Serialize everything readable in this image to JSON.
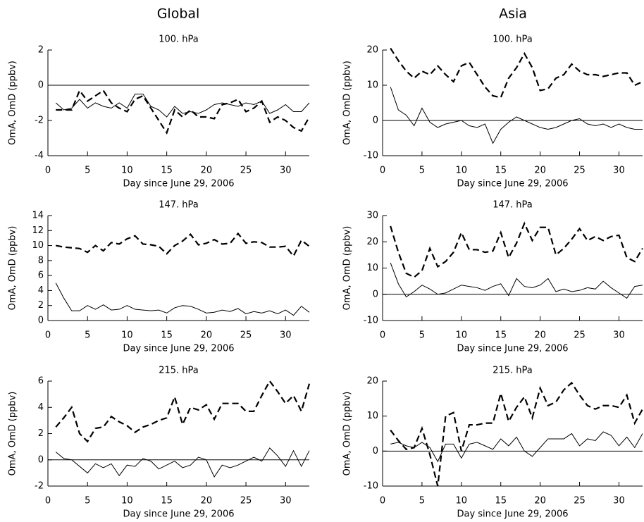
{
  "column_titles": [
    "Global",
    "Asia"
  ],
  "chart_data": [
    {
      "type": "line",
      "title": "100. hPa",
      "xlabel": "Day since June 29, 2006",
      "ylabel": "OmA, OmD (ppbv)",
      "x": [
        1,
        2,
        3,
        4,
        5,
        6,
        7,
        8,
        9,
        10,
        11,
        12,
        13,
        14,
        15,
        16,
        17,
        18,
        19,
        20,
        21,
        22,
        23,
        24,
        25,
        26,
        27,
        28,
        29,
        30,
        31,
        32,
        33
      ],
      "xlim": [
        0,
        33
      ],
      "xticks": [
        0,
        5,
        10,
        15,
        20,
        25,
        30
      ],
      "ylim": [
        -4,
        2
      ],
      "yticks": [
        -4,
        -2,
        0,
        2
      ],
      "hline": 0,
      "series": [
        {
          "color": "#000000",
          "dash": false,
          "values": [
            -1.0,
            -1.4,
            -1.3,
            -0.8,
            -1.3,
            -1.0,
            -1.2,
            -1.3,
            -1.0,
            -1.3,
            -0.5,
            -0.5,
            -1.2,
            -1.4,
            -1.8,
            -1.2,
            -1.6,
            -1.5,
            -1.6,
            -1.4,
            -1.1,
            -1.0,
            -1.1,
            -1.2,
            -1.0,
            -1.1,
            -0.9,
            -1.6,
            -1.4,
            -1.1,
            -1.5,
            -1.5,
            -1.0
          ]
        },
        {
          "color": "#000000",
          "dash": true,
          "values": [
            -1.4,
            -1.4,
            -1.4,
            -0.3,
            -0.9,
            -0.6,
            -0.3,
            -1.0,
            -1.3,
            -1.5,
            -0.8,
            -0.6,
            -1.3,
            -2.0,
            -2.7,
            -1.4,
            -1.8,
            -1.4,
            -1.8,
            -1.8,
            -1.9,
            -1.1,
            -1.0,
            -0.8,
            -1.5,
            -1.3,
            -0.9,
            -2.1,
            -1.8,
            -2.0,
            -2.4,
            -2.6,
            -1.8
          ]
        }
      ]
    },
    {
      "type": "line",
      "title": "100. hPa",
      "xlabel": "Day since June 29, 2006",
      "ylabel": "OmA, OmD (ppbv)",
      "x": [
        1,
        2,
        3,
        4,
        5,
        6,
        7,
        8,
        9,
        10,
        11,
        12,
        13,
        14,
        15,
        16,
        17,
        18,
        19,
        20,
        21,
        22,
        23,
        24,
        25,
        26,
        27,
        28,
        29,
        30,
        31,
        32,
        33
      ],
      "xlim": [
        0,
        33
      ],
      "xticks": [
        0,
        5,
        10,
        15,
        20,
        25,
        30
      ],
      "ylim": [
        -10,
        20
      ],
      "yticks": [
        -10,
        0,
        10,
        20
      ],
      "hline": 0,
      "series": [
        {
          "color": "#000000",
          "dash": false,
          "values": [
            9.5,
            3,
            1.5,
            -1.5,
            3.5,
            -0.5,
            -2,
            -1,
            -0.5,
            0,
            -1.5,
            -2,
            -1,
            -6.5,
            -2.5,
            -0.5,
            1,
            0,
            -1,
            -2,
            -2.5,
            -2,
            -1,
            0,
            0.5,
            -1,
            -1.5,
            -1,
            -2,
            -1,
            -2,
            -2.5,
            -2.5
          ]
        },
        {
          "color": "#000000",
          "dash": true,
          "values": [
            20.5,
            17,
            14,
            12,
            14,
            13,
            15.5,
            13,
            11,
            15.5,
            16.5,
            13,
            9.5,
            7,
            6.5,
            12,
            15,
            19,
            15,
            8.5,
            9,
            12,
            13,
            16,
            14,
            13,
            13,
            12.5,
            13,
            13.5,
            13.5,
            10,
            11
          ]
        }
      ]
    },
    {
      "type": "line",
      "title": "147. hPa",
      "xlabel": "Day since June 29, 2006",
      "ylabel": "OmA, OmD (ppbv)",
      "x": [
        1,
        2,
        3,
        4,
        5,
        6,
        7,
        8,
        9,
        10,
        11,
        12,
        13,
        14,
        15,
        16,
        17,
        18,
        19,
        20,
        21,
        22,
        23,
        24,
        25,
        26,
        27,
        28,
        29,
        30,
        31,
        32,
        33
      ],
      "xlim": [
        0,
        33
      ],
      "xticks": [
        0,
        5,
        10,
        15,
        20,
        25,
        30
      ],
      "ylim": [
        0,
        14
      ],
      "yticks": [
        0,
        2,
        4,
        6,
        8,
        10,
        12,
        14
      ],
      "hline": 0,
      "series": [
        {
          "color": "#000000",
          "dash": false,
          "values": [
            5,
            3,
            1.3,
            1.3,
            2,
            1.5,
            2.1,
            1.4,
            1.5,
            2,
            1.5,
            1.4,
            1.3,
            1.4,
            1,
            1.7,
            2,
            1.9,
            1.5,
            1,
            1.1,
            1.4,
            1.2,
            1.6,
            0.9,
            1.2,
            1,
            1.3,
            0.9,
            1.4,
            0.7,
            1.9,
            1.1
          ]
        },
        {
          "color": "#000000",
          "dash": true,
          "values": [
            10,
            9.8,
            9.7,
            9.6,
            9.1,
            10,
            9.3,
            10.4,
            10.2,
            10.9,
            11.3,
            10.2,
            10.1,
            9.9,
            8.9,
            10,
            10.6,
            11.5,
            10.1,
            10.3,
            10.8,
            10.2,
            10.3,
            11.6,
            10.3,
            10.5,
            10.4,
            9.8,
            9.8,
            9.9,
            8.6,
            10.7,
            9.9
          ]
        }
      ]
    },
    {
      "type": "line",
      "title": "147. hPa",
      "xlabel": "Day since June 29, 2006",
      "ylabel": "OmA, OmD (ppbv)",
      "x": [
        1,
        2,
        3,
        4,
        5,
        6,
        7,
        8,
        9,
        10,
        11,
        12,
        13,
        14,
        15,
        16,
        17,
        18,
        19,
        20,
        21,
        22,
        23,
        24,
        25,
        26,
        27,
        28,
        29,
        30,
        31,
        32,
        33
      ],
      "xlim": [
        0,
        33
      ],
      "xticks": [
        0,
        5,
        10,
        15,
        20,
        25,
        30
      ],
      "ylim": [
        -10,
        30
      ],
      "yticks": [
        -10,
        0,
        10,
        20,
        30
      ],
      "hline": 0,
      "series": [
        {
          "color": "#000000",
          "dash": false,
          "values": [
            12,
            4,
            -1,
            1,
            3.5,
            2,
            0,
            0.5,
            2,
            3.5,
            3,
            2.5,
            1.5,
            3,
            4,
            -0.5,
            6,
            3,
            2.5,
            3.5,
            6,
            1,
            2,
            1,
            1.5,
            2.5,
            2,
            5,
            2.5,
            0.5,
            -1.5,
            3,
            3.5
          ]
        },
        {
          "color": "#000000",
          "dash": true,
          "values": [
            26,
            16,
            8,
            6.5,
            9,
            17.5,
            10.5,
            12.5,
            16,
            23.5,
            17,
            17,
            16,
            16.5,
            23.5,
            14,
            19.5,
            27,
            20.5,
            25.5,
            25.5,
            15,
            17.5,
            21,
            25,
            20.5,
            22,
            20.5,
            22,
            22.5,
            14,
            12.5,
            17.5
          ]
        }
      ]
    },
    {
      "type": "line",
      "title": "215. hPa",
      "xlabel": "Day since June 29, 2006",
      "ylabel": "OmA, OmD (ppbv)",
      "x": [
        1,
        2,
        3,
        4,
        5,
        6,
        7,
        8,
        9,
        10,
        11,
        12,
        13,
        14,
        15,
        16,
        17,
        18,
        19,
        20,
        21,
        22,
        23,
        24,
        25,
        26,
        27,
        28,
        29,
        30,
        31,
        32,
        33
      ],
      "xlim": [
        0,
        33
      ],
      "xticks": [
        0,
        5,
        10,
        15,
        20,
        25,
        30
      ],
      "ylim": [
        -2,
        6
      ],
      "yticks": [
        -2,
        0,
        2,
        4,
        6
      ],
      "hline": 0,
      "series": [
        {
          "color": "#000000",
          "dash": false,
          "values": [
            0.6,
            0.1,
            0,
            -0.5,
            -1,
            -0.3,
            -0.6,
            -0.3,
            -1.2,
            -0.4,
            -0.5,
            0.1,
            -0.1,
            -0.7,
            -0.4,
            -0.1,
            -0.6,
            -0.4,
            0.2,
            0,
            -1.3,
            -0.4,
            -0.6,
            -0.4,
            -0.1,
            0.2,
            -0.1,
            0.9,
            0.3,
            -0.5,
            0.7,
            -0.5,
            0.7
          ]
        },
        {
          "color": "#000000",
          "dash": true,
          "values": [
            2.5,
            3.2,
            4,
            2,
            1.4,
            2.4,
            2.5,
            3.3,
            2.9,
            2.6,
            2.1,
            2.5,
            2.7,
            3,
            3.2,
            4.8,
            2.7,
            4,
            3.8,
            4.2,
            3.1,
            4.3,
            4.3,
            4.3,
            3.7,
            3.7,
            4.9,
            6,
            5.2,
            4.3,
            4.9,
            3.7,
            5.8
          ]
        }
      ]
    },
    {
      "type": "line",
      "title": "215. hPa",
      "xlabel": "Day since June 29, 2006",
      "ylabel": "OmA, OmD (ppbv)",
      "x": [
        1,
        2,
        3,
        4,
        5,
        6,
        7,
        8,
        9,
        10,
        11,
        12,
        13,
        14,
        15,
        16,
        17,
        18,
        19,
        20,
        21,
        22,
        23,
        24,
        25,
        26,
        27,
        28,
        29,
        30,
        31,
        32,
        33
      ],
      "xlim": [
        0,
        33
      ],
      "xticks": [
        0,
        5,
        10,
        15,
        20,
        25,
        30
      ],
      "ylim": [
        -10,
        20
      ],
      "yticks": [
        -10,
        0,
        10,
        20
      ],
      "hline": 0,
      "series": [
        {
          "color": "#000000",
          "dash": false,
          "values": [
            2,
            2.5,
            1.5,
            1,
            2.5,
            1,
            -3,
            2,
            2,
            -2,
            2,
            2.5,
            1.5,
            0.5,
            3.5,
            1.5,
            4,
            0,
            -1.5,
            1,
            3.5,
            3.5,
            3.5,
            5,
            1.5,
            3.5,
            3,
            5.5,
            4.5,
            1.5,
            4,
            1,
            5
          ]
        },
        {
          "color": "#000000",
          "dash": true,
          "values": [
            6,
            3,
            0.5,
            1,
            6.5,
            -1,
            -10,
            10,
            11,
            0,
            7.5,
            7.5,
            8,
            8,
            16.5,
            8.5,
            12.5,
            15.5,
            9.5,
            18,
            13,
            14,
            17.5,
            19.5,
            16,
            13,
            12,
            13,
            13,
            12.5,
            16,
            8,
            12
          ]
        }
      ]
    }
  ]
}
